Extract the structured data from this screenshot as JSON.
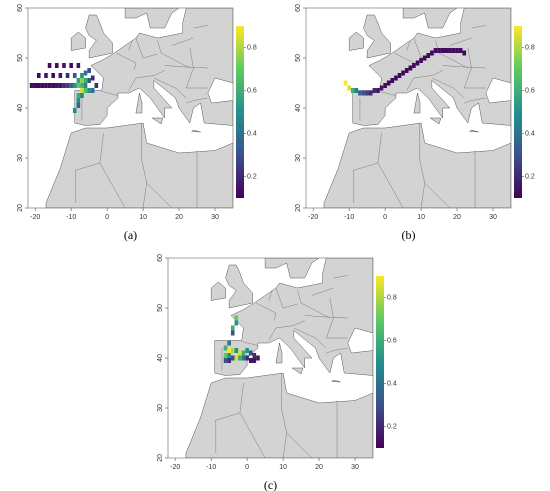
{
  "panels": [
    {
      "label": "(a)",
      "xlim": [
        -22,
        35
      ],
      "ylim": [
        20,
        60
      ],
      "xticks": [
        -20,
        -10,
        0,
        10,
        20,
        30
      ],
      "yticks": [
        20,
        30,
        40,
        50,
        60
      ],
      "colorbar": {
        "lim": [
          0.1,
          0.9
        ],
        "ticks": [
          0.2,
          0.4,
          0.6,
          0.8
        ]
      },
      "cells": [
        [
          -16,
          48.5,
          0.12
        ],
        [
          -14,
          48.5,
          0.12
        ],
        [
          -12,
          48.5,
          0.15
        ],
        [
          -10,
          48.5,
          0.12
        ],
        [
          -8,
          48.5,
          0.15
        ],
        [
          -19,
          46.5,
          0.12
        ],
        [
          -17,
          46.5,
          0.15
        ],
        [
          -15,
          46.5,
          0.12
        ],
        [
          -13,
          46.5,
          0.15
        ],
        [
          -11,
          46.5,
          0.2
        ],
        [
          -9,
          46.5,
          0.3
        ],
        [
          -7,
          46.5,
          0.5
        ],
        [
          -21,
          44.5,
          0.12
        ],
        [
          -20,
          44.5,
          0.12
        ],
        [
          -19,
          44.5,
          0.12
        ],
        [
          -18,
          44.5,
          0.12
        ],
        [
          -17,
          44.5,
          0.12
        ],
        [
          -16,
          44.5,
          0.12
        ],
        [
          -15,
          44.5,
          0.12
        ],
        [
          -14,
          44.5,
          0.15
        ],
        [
          -13,
          44.5,
          0.15
        ],
        [
          -12,
          44.5,
          0.2
        ],
        [
          -11,
          44.5,
          0.25
        ],
        [
          -10,
          44.5,
          0.35
        ],
        [
          -9,
          44.5,
          0.5
        ],
        [
          -8,
          44.5,
          0.7
        ],
        [
          -7,
          44.5,
          0.6
        ],
        [
          -6,
          44.5,
          0.45
        ],
        [
          -8,
          45.5,
          0.55
        ],
        [
          -7,
          45.5,
          0.75
        ],
        [
          -6,
          45.5,
          0.6
        ],
        [
          -5,
          45.5,
          0.3
        ],
        [
          -4,
          46,
          0.2
        ],
        [
          -7,
          43.5,
          0.85
        ],
        [
          -6,
          43.5,
          0.65
        ],
        [
          -5,
          43.5,
          0.5
        ],
        [
          -4,
          43.5,
          0.4
        ],
        [
          -8,
          42.5,
          0.6
        ],
        [
          -7,
          42.5,
          0.45
        ],
        [
          -8,
          41.5,
          0.5
        ],
        [
          -8,
          40.5,
          0.35
        ],
        [
          -9,
          39.5,
          0.5
        ],
        [
          -6,
          47,
          0.4
        ],
        [
          -5,
          47.5,
          0.3
        ],
        [
          -3,
          44.5,
          0.2
        ]
      ]
    },
    {
      "label": "(b)",
      "xlim": [
        -22,
        35
      ],
      "ylim": [
        20,
        60
      ],
      "xticks": [
        -20,
        -10,
        0,
        10,
        20,
        30
      ],
      "yticks": [
        20,
        30,
        40,
        50,
        60
      ],
      "colorbar": {
        "lim": [
          0.1,
          0.9
        ],
        "ticks": [
          0.2,
          0.4,
          0.6,
          0.8
        ]
      },
      "cells": [
        [
          -11,
          45,
          0.9
        ],
        [
          -10,
          44,
          0.85
        ],
        [
          -9,
          43.5,
          0.6
        ],
        [
          -8,
          43.5,
          0.45
        ],
        [
          -7,
          43,
          0.35
        ],
        [
          -6,
          43,
          0.3
        ],
        [
          -5,
          43,
          0.25
        ],
        [
          -4,
          43,
          0.2
        ],
        [
          -3,
          43.5,
          0.2
        ],
        [
          -2,
          43.5,
          0.15
        ],
        [
          -1,
          44,
          0.15
        ],
        [
          0,
          44.5,
          0.12
        ],
        [
          1,
          45,
          0.12
        ],
        [
          2,
          45.5,
          0.12
        ],
        [
          3,
          46,
          0.12
        ],
        [
          4,
          46.5,
          0.12
        ],
        [
          5,
          47,
          0.12
        ],
        [
          6,
          47.5,
          0.12
        ],
        [
          7,
          48,
          0.12
        ],
        [
          8,
          48.5,
          0.12
        ],
        [
          9,
          49,
          0.12
        ],
        [
          10,
          49.5,
          0.12
        ],
        [
          11,
          50,
          0.12
        ],
        [
          12,
          50.5,
          0.12
        ],
        [
          13,
          51,
          0.12
        ],
        [
          14,
          51.5,
          0.12
        ],
        [
          15,
          51.5,
          0.12
        ],
        [
          16,
          51.5,
          0.12
        ],
        [
          17,
          51.5,
          0.12
        ],
        [
          18,
          51.5,
          0.12
        ],
        [
          19,
          51.5,
          0.12
        ],
        [
          20,
          51.5,
          0.12
        ],
        [
          21,
          51.5,
          0.12
        ],
        [
          22,
          51,
          0.12
        ]
      ]
    },
    {
      "label": "(c)",
      "xlim": [
        -22,
        35
      ],
      "ylim": [
        20,
        60
      ],
      "xticks": [
        -20,
        -10,
        0,
        10,
        20,
        30
      ],
      "yticks": [
        20,
        30,
        40,
        50,
        60
      ],
      "colorbar": {
        "lim": [
          0.1,
          0.9
        ],
        "ticks": [
          0.2,
          0.4,
          0.6,
          0.8
        ]
      },
      "cells": [
        [
          -3,
          48,
          0.7
        ],
        [
          -3,
          47,
          0.5
        ],
        [
          -4,
          46,
          0.6
        ],
        [
          -4,
          45,
          0.3
        ],
        [
          -5,
          43,
          0.4
        ],
        [
          -6,
          42,
          0.6
        ],
        [
          -5,
          41.5,
          0.9
        ],
        [
          -4,
          41.5,
          0.8
        ],
        [
          -3,
          41.5,
          0.5
        ],
        [
          -2,
          41,
          0.85
        ],
        [
          -1,
          41,
          0.6
        ],
        [
          0,
          41.5,
          0.5
        ],
        [
          1,
          41,
          0.3
        ],
        [
          2,
          40.5,
          0.2
        ],
        [
          3,
          40,
          0.15
        ],
        [
          -6,
          40.5,
          0.7
        ],
        [
          -5,
          40.5,
          0.5
        ],
        [
          -4,
          40,
          0.3
        ],
        [
          -3,
          40,
          0.85
        ],
        [
          -2,
          40,
          0.6
        ],
        [
          -1,
          40,
          0.4
        ],
        [
          0,
          40,
          0.2
        ],
        [
          1,
          39.5,
          0.15
        ],
        [
          2,
          39.5,
          0.15
        ],
        [
          -5,
          39.5,
          0.2
        ],
        [
          -6,
          39.5,
          0.3
        ]
      ]
    }
  ]
}
